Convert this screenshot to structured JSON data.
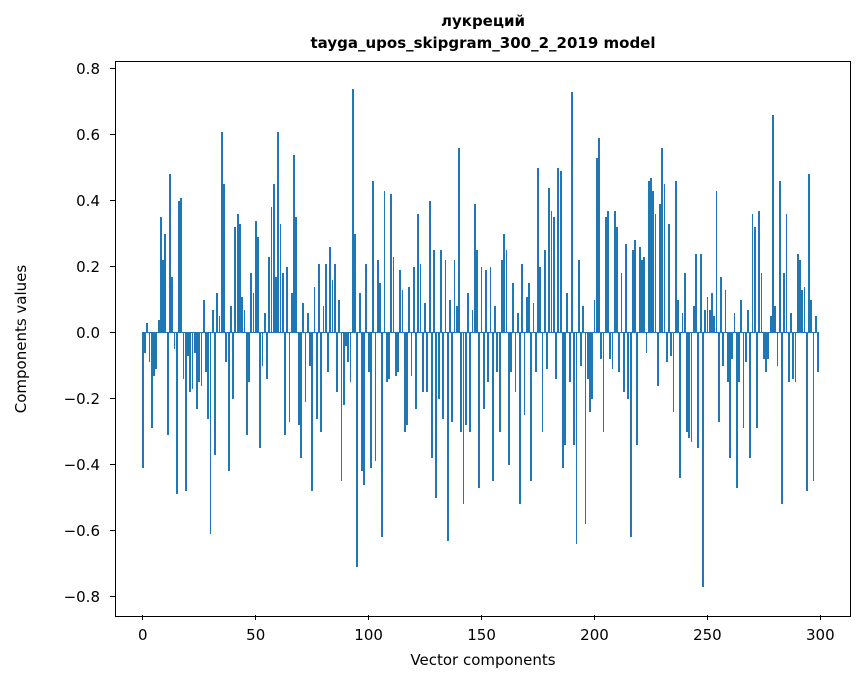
{
  "chart_data": {
    "type": "bar",
    "title_line1": "лукреций",
    "title_line2": "tayga_upos_skipgram_300_2_2019 model",
    "xlabel": "Vector components",
    "ylabel": "Components values",
    "x_ticks": [
      0,
      50,
      100,
      150,
      200,
      250,
      300
    ],
    "y_ticks": [
      0.8,
      0.6,
      0.4,
      0.2,
      0.0,
      -0.2,
      -0.4,
      -0.6,
      -0.8
    ],
    "xlim": [
      -12.4,
      313.6
    ],
    "ylim": [
      -0.86,
      0.82
    ],
    "grid": false,
    "legend": null,
    "bar_color": "#1f77b4",
    "n_components": 300,
    "values": [
      -0.41,
      -0.06,
      0.03,
      -0.09,
      -0.29,
      -0.13,
      -0.11,
      0.04,
      0.35,
      0.22,
      0.3,
      -0.31,
      0.48,
      0.17,
      -0.05,
      -0.49,
      0.4,
      0.41,
      -0.14,
      -0.48,
      -0.07,
      -0.18,
      -0.17,
      -0.06,
      -0.23,
      -0.15,
      -0.16,
      0.1,
      -0.12,
      -0.26,
      -0.61,
      0.07,
      -0.37,
      0.12,
      0.05,
      0.61,
      0.45,
      -0.09,
      -0.42,
      0.08,
      -0.2,
      0.32,
      0.36,
      0.33,
      0.11,
      0.07,
      -0.31,
      -0.15,
      0.18,
      0.12,
      0.34,
      0.29,
      -0.35,
      -0.1,
      0.06,
      -0.14,
      0.23,
      0.38,
      0.45,
      0.17,
      0.61,
      0.33,
      0.18,
      -0.31,
      0.2,
      -0.27,
      0.12,
      0.54,
      0.35,
      -0.28,
      -0.38,
      0.09,
      -0.21,
      0.06,
      -0.1,
      -0.48,
      0.14,
      -0.26,
      0.21,
      -0.3,
      0.08,
      0.21,
      -0.12,
      0.26,
      0.16,
      0.21,
      -0.18,
      0.1,
      -0.45,
      -0.22,
      -0.04,
      -0.09,
      -0.15,
      0.74,
      0.3,
      -0.71,
      0.12,
      -0.42,
      -0.46,
      0.21,
      -0.12,
      -0.41,
      0.46,
      -0.39,
      0.22,
      0.15,
      -0.62,
      0.43,
      -0.15,
      -0.14,
      0.42,
      0.23,
      -0.13,
      -0.12,
      0.19,
      0.13,
      -0.3,
      -0.28,
      0.14,
      -0.13,
      0.2,
      -0.23,
      0.36,
      0.21,
      -0.18,
      0.09,
      -0.18,
      0.4,
      -0.38,
      0.25,
      -0.5,
      -0.2,
      0.25,
      -0.26,
      0.22,
      -0.63,
      0.1,
      -0.27,
      0.22,
      0.08,
      0.56,
      -0.3,
      -0.52,
      -0.28,
      0.12,
      -0.3,
      0.07,
      0.39,
      0.25,
      -0.47,
      0.2,
      -0.23,
      0.19,
      -0.15,
      0.2,
      -0.45,
      0.08,
      -0.12,
      -0.3,
      0.22,
      0.3,
      0.25,
      -0.4,
      -0.12,
      0.15,
      -0.18,
      0.06,
      -0.52,
      0.21,
      -0.25,
      0.11,
      0.15,
      -0.45,
      0.09,
      -0.12,
      0.5,
      0.2,
      -0.3,
      0.25,
      -0.11,
      0.44,
      0.37,
      0.35,
      -0.14,
      0.5,
      0.49,
      -0.41,
      -0.34,
      0.12,
      -0.15,
      0.73,
      -0.34,
      -0.64,
      0.22,
      -0.1,
      0.08,
      -0.58,
      -0.14,
      -0.24,
      -0.2,
      0.1,
      0.53,
      0.59,
      -0.08,
      -0.3,
      0.35,
      0.37,
      -0.08,
      -0.11,
      0.37,
      0.32,
      -0.12,
      0.18,
      -0.18,
      0.27,
      -0.2,
      -0.62,
      0.25,
      0.28,
      -0.34,
      0.26,
      0.22,
      0.23,
      -0.06,
      0.46,
      0.47,
      0.43,
      0.36,
      -0.16,
      0.39,
      0.56,
      0.45,
      -0.09,
      0.33,
      -0.07,
      -0.24,
      0.46,
      0.1,
      -0.44,
      0.06,
      0.18,
      -0.3,
      -0.32,
      -0.33,
      0.08,
      0.24,
      -0.35,
      0.24,
      -0.77,
      0.07,
      0.11,
      0.07,
      0.12,
      0.05,
      0.43,
      -0.27,
      0.17,
      -0.1,
      0.13,
      -0.15,
      -0.38,
      -0.08,
      0.06,
      -0.47,
      -0.15,
      0.1,
      -0.29,
      -0.09,
      0.07,
      -0.38,
      0.36,
      0.32,
      -0.29,
      0.37,
      0.18,
      -0.08,
      -0.12,
      -0.08,
      0.05,
      0.66,
      0.08,
      -0.1,
      0.46,
      -0.52,
      0.18,
      0.36,
      -0.15,
      0.06,
      -0.14,
      -0.15,
      0.24,
      0.22,
      0.13,
      0.14,
      -0.48,
      0.48,
      0.1,
      -0.45,
      0.05,
      -0.12
    ]
  }
}
